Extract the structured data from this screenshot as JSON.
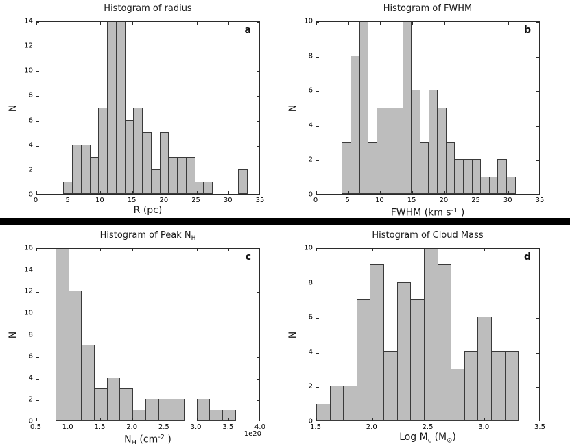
{
  "figure": {
    "background": "#ffffff",
    "divider_color": "#000000",
    "bar_fill": "#bdbdbd",
    "bar_edge": "#3a3a3a",
    "axis_color": "#2b2b2b"
  },
  "chart_data": [
    {
      "id": "a",
      "type": "bar",
      "title_parts": [
        {
          "t": "Histogram of radius"
        }
      ],
      "xlabel_parts": [
        {
          "t": "R (pc)"
        }
      ],
      "ylabel": "N",
      "letter": "a",
      "xlim": [
        0,
        35
      ],
      "ylim": [
        0,
        14
      ],
      "xticks": [
        0,
        5,
        10,
        15,
        20,
        25,
        30,
        35
      ],
      "xtick_labels": [
        "0",
        "5",
        "10",
        "15",
        "20",
        "25",
        "30",
        "35"
      ],
      "yticks": [
        0,
        2,
        4,
        6,
        8,
        10,
        12,
        14
      ],
      "ytick_labels": [
        "0",
        "2",
        "4",
        "6",
        "8",
        "10",
        "12",
        "14"
      ],
      "bin_start": 4.2,
      "bin_width": 1.365,
      "values": [
        1,
        4,
        4,
        3,
        7,
        14,
        14,
        6,
        7,
        5,
        2,
        5,
        3,
        3,
        3,
        1,
        1,
        0,
        0,
        0,
        2
      ],
      "grid": false,
      "legend": null
    },
    {
      "id": "b",
      "type": "bar",
      "title_parts": [
        {
          "t": "Histogram of FWHM"
        }
      ],
      "xlabel_parts": [
        {
          "t": "FWHM (km s"
        },
        {
          "sup": "-1"
        },
        {
          "t": " )"
        }
      ],
      "ylabel": "N",
      "letter": "b",
      "xlim": [
        0,
        35
      ],
      "ylim": [
        0,
        10
      ],
      "xticks": [
        0,
        5,
        10,
        15,
        20,
        25,
        30,
        35
      ],
      "xtick_labels": [
        "0",
        "5",
        "10",
        "15",
        "20",
        "25",
        "30",
        "35"
      ],
      "yticks": [
        0,
        2,
        4,
        6,
        8,
        10
      ],
      "ytick_labels": [
        "0",
        "2",
        "4",
        "6",
        "8",
        "10"
      ],
      "bin_start": 4.0,
      "bin_width": 1.35,
      "values": [
        3,
        8,
        10,
        3,
        5,
        5,
        5,
        10,
        6,
        3,
        6,
        5,
        3,
        2,
        2,
        2,
        1,
        1,
        2,
        1
      ],
      "grid": false,
      "legend": null
    },
    {
      "id": "c",
      "type": "bar",
      "title_parts": [
        {
          "t": "Histogram of Peak N"
        },
        {
          "sub": "H"
        }
      ],
      "xlabel_parts": [
        {
          "t": "N"
        },
        {
          "sub": "H"
        },
        {
          "t": "  (cm"
        },
        {
          "sup": "-2"
        },
        {
          "t": " )"
        }
      ],
      "ylabel": "N",
      "letter": "c",
      "offset_text": "1e20",
      "xlim": [
        0.5,
        4.0
      ],
      "ylim": [
        0,
        16
      ],
      "xticks": [
        0.5,
        1.0,
        1.5,
        2.0,
        2.5,
        3.0,
        3.5,
        4.0
      ],
      "xtick_labels": [
        "0.5",
        "1.0",
        "1.5",
        "2.0",
        "2.5",
        "3.0",
        "3.5",
        "4.0"
      ],
      "yticks": [
        0,
        2,
        4,
        6,
        8,
        10,
        12,
        14,
        16
      ],
      "ytick_labels": [
        "0",
        "2",
        "4",
        "6",
        "8",
        "10",
        "12",
        "14",
        "16"
      ],
      "bin_start": 0.8,
      "bin_width": 0.2,
      "values": [
        16,
        12,
        7,
        3,
        4,
        3,
        1,
        2,
        2,
        2,
        0,
        2,
        1,
        1
      ],
      "grid": false,
      "legend": null
    },
    {
      "id": "d",
      "type": "bar",
      "title_parts": [
        {
          "t": "Histogram of Cloud Mass"
        }
      ],
      "xlabel_parts": [
        {
          "t": "Log M"
        },
        {
          "sub": "c"
        },
        {
          "t": " (M"
        },
        {
          "sub": "⊙"
        },
        {
          "t": ")"
        }
      ],
      "ylabel": "N",
      "letter": "d",
      "xlim": [
        1.5,
        3.5
      ],
      "ylim": [
        0,
        10
      ],
      "xticks": [
        1.5,
        2.0,
        2.5,
        3.0,
        3.5
      ],
      "xtick_labels": [
        "1.5",
        "2.0",
        "2.5",
        "3.0",
        "3.5"
      ],
      "yticks": [
        0,
        2,
        4,
        6,
        8,
        10
      ],
      "ytick_labels": [
        "0",
        "2",
        "4",
        "6",
        "8",
        "10"
      ],
      "bin_start": 1.5,
      "bin_width": 0.12,
      "values": [
        1,
        2,
        2,
        7,
        9,
        4,
        8,
        7,
        10,
        9,
        3,
        4,
        6,
        4,
        4
      ],
      "grid": false,
      "legend": null
    }
  ]
}
